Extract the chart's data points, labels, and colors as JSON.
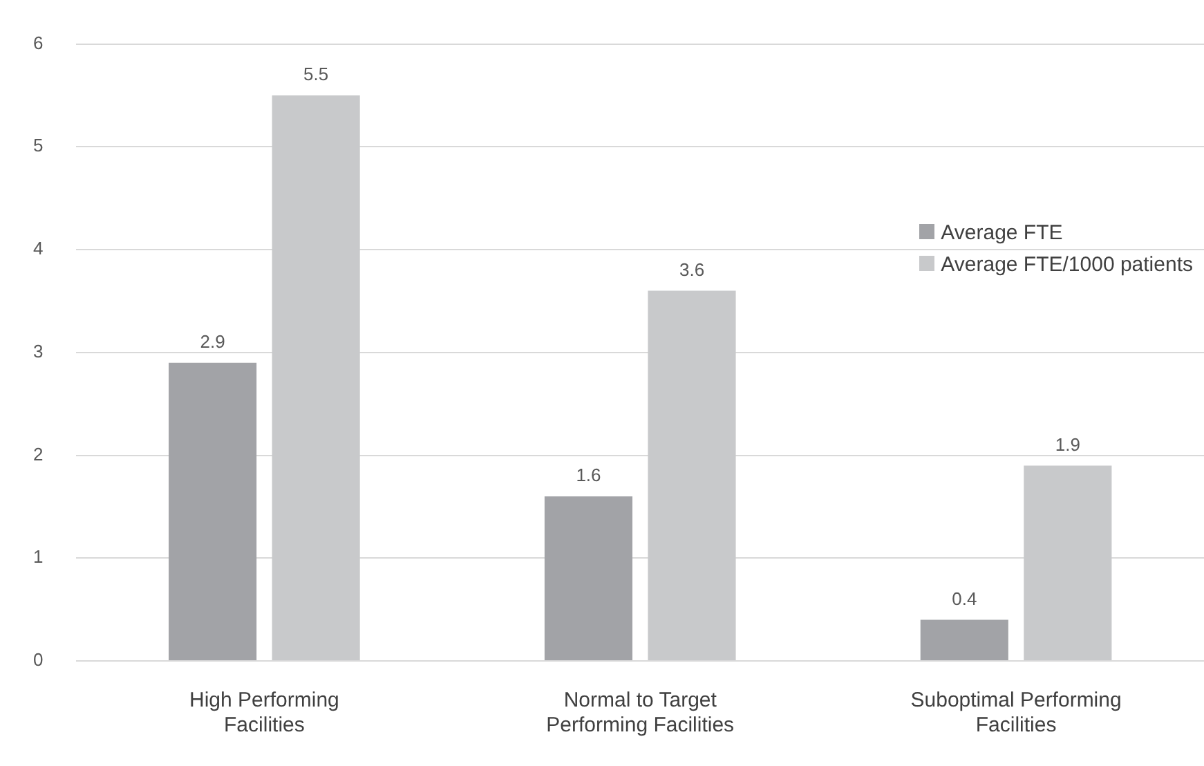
{
  "chart_data": {
    "type": "bar",
    "categories": [
      "High Performing Facilities",
      "Normal to Target Performing Facilities",
      "Suboptimal Performing Facilities"
    ],
    "series": [
      {
        "name": "Average FTE",
        "color": "#a2a3a7",
        "values": [
          2.9,
          1.6,
          0.4
        ]
      },
      {
        "name": "Average FTE/1000 patients",
        "color": "#c8c9cb",
        "values": [
          5.5,
          3.6,
          1.9
        ]
      }
    ],
    "ylim": [
      0,
      6
    ],
    "yticks": [
      0,
      1,
      2,
      3,
      4,
      5,
      6
    ],
    "grid": "y",
    "legend": "right",
    "data_labels": true
  }
}
